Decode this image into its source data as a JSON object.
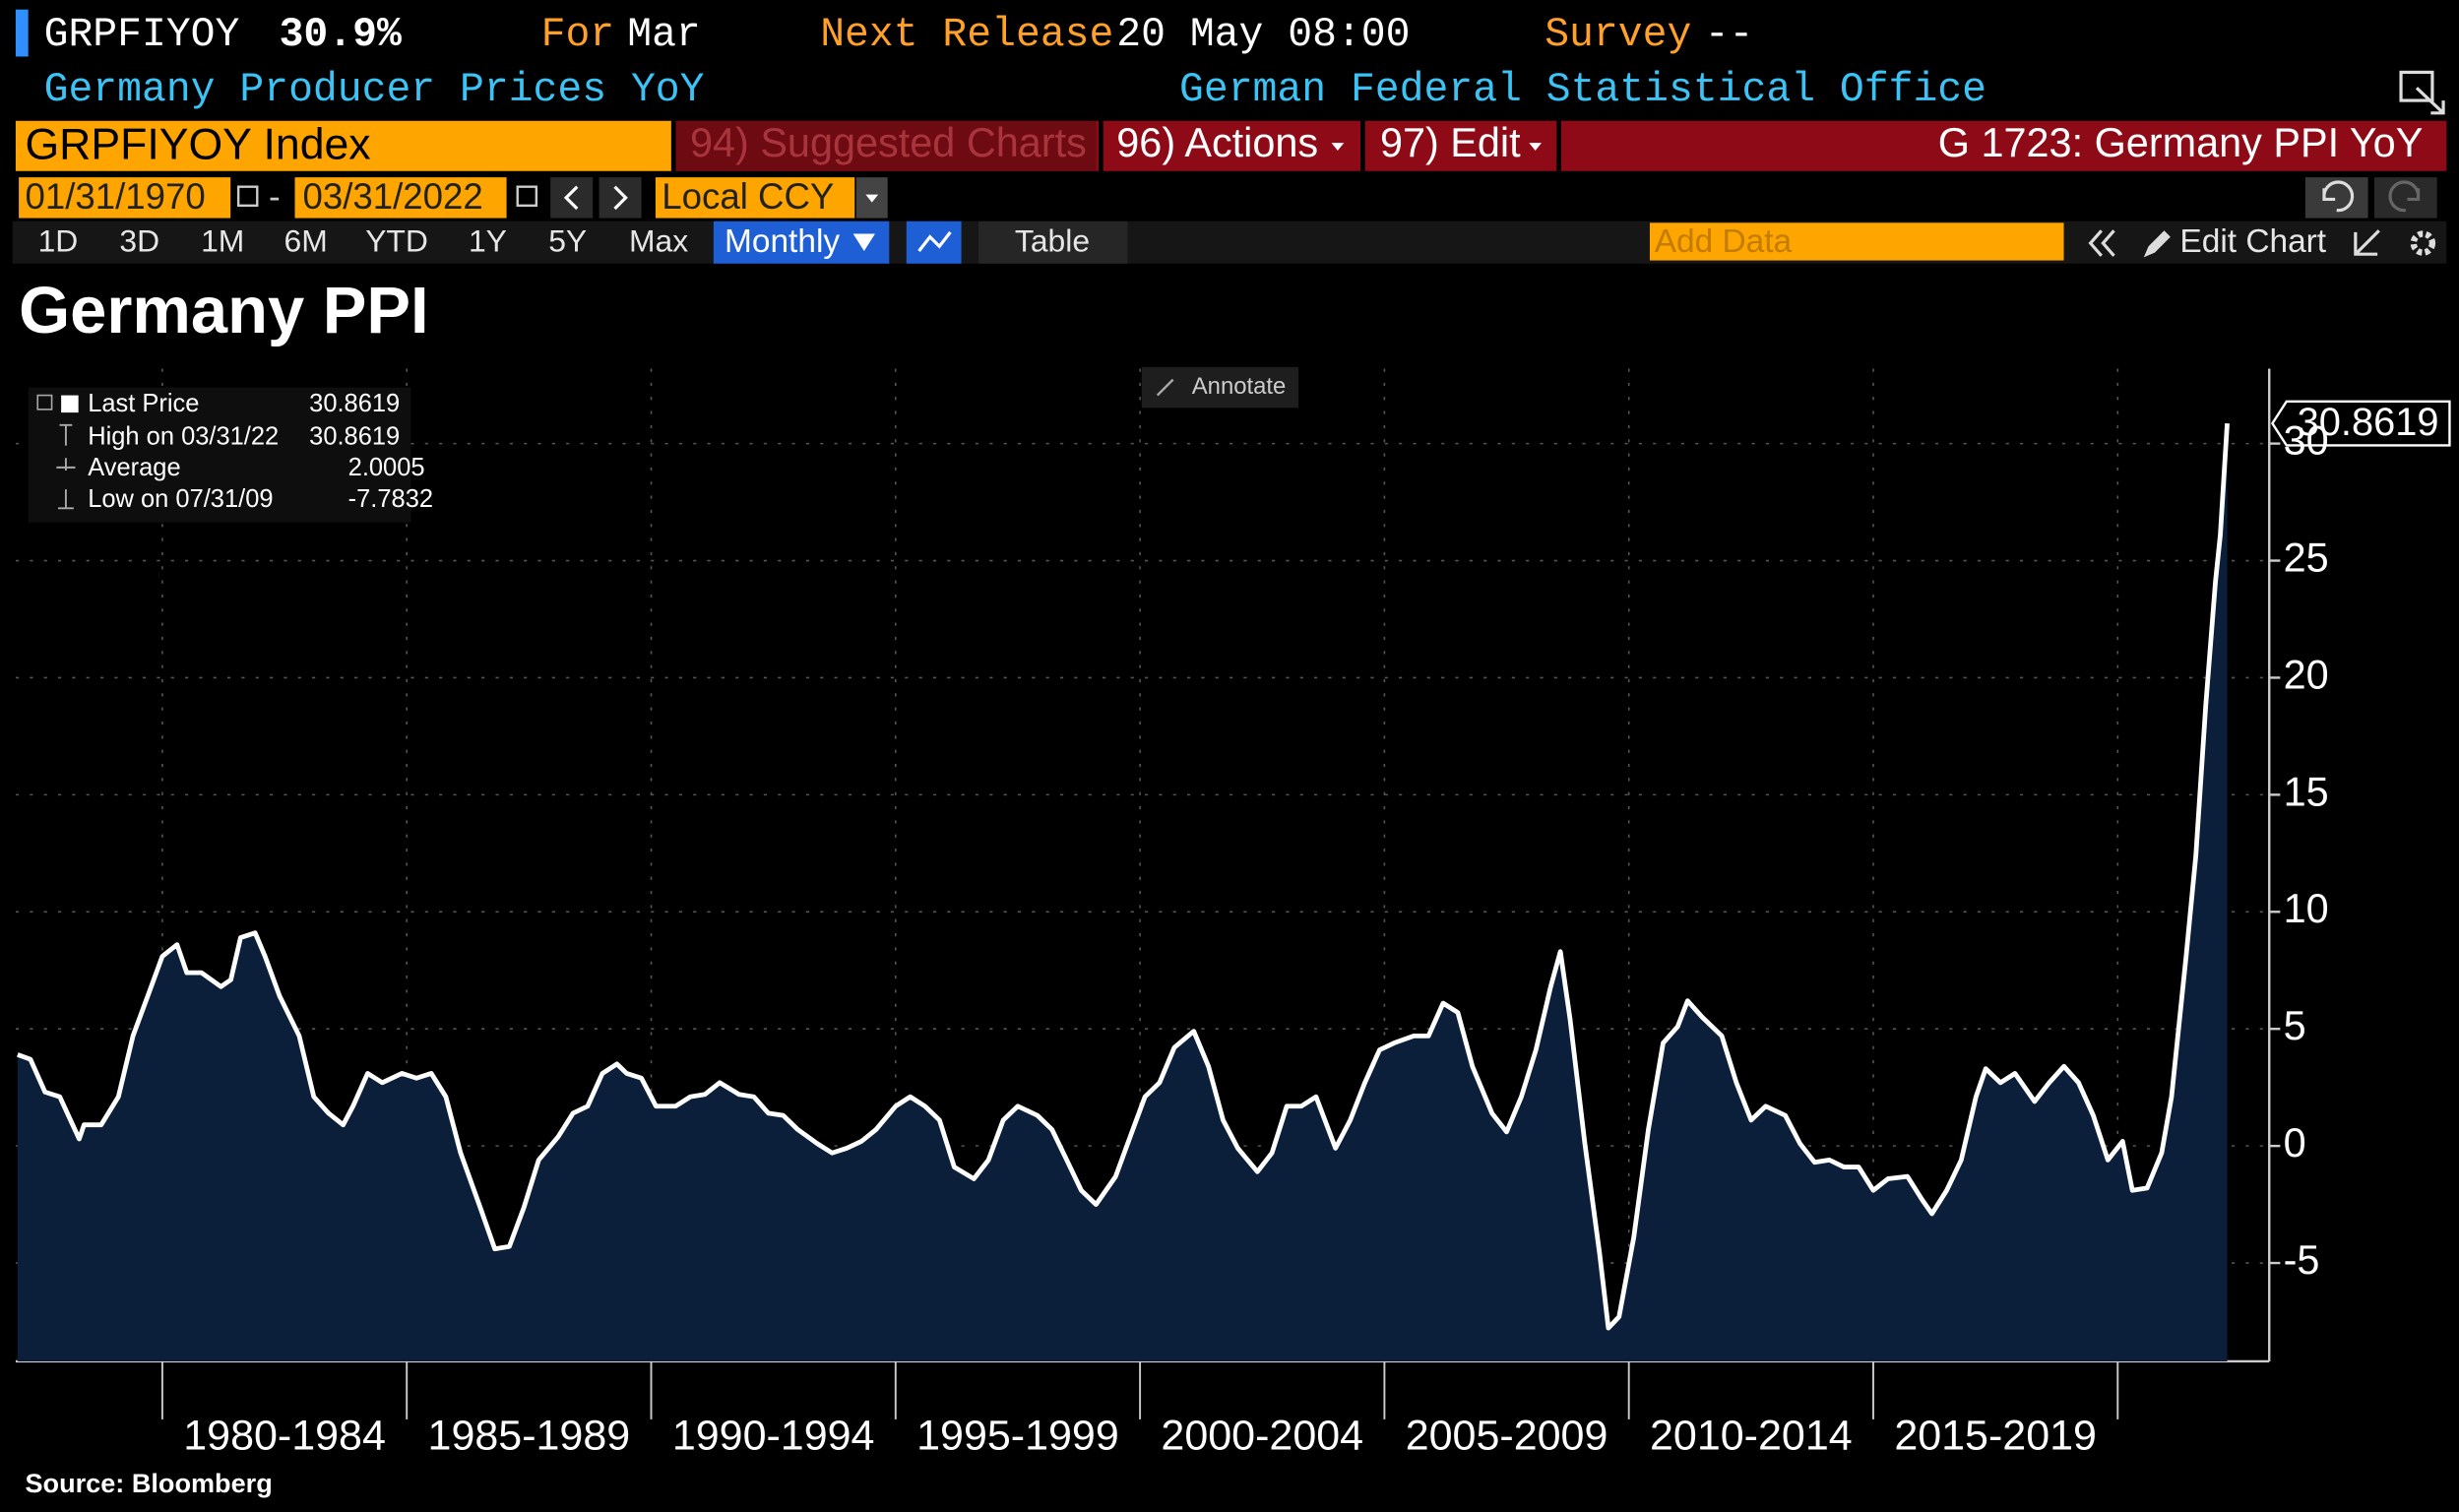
{
  "ui": {
    "ticker": "GRPFIYOY",
    "last_change": "30.9%",
    "for_label": "For",
    "for_value": "Mar",
    "next_release_label": "Next Release",
    "next_release_value": "20 May 08:00",
    "survey_label": "Survey",
    "survey_value": "--",
    "description": "Germany Producer Prices YoY",
    "source_name": "German Federal Statistical Office",
    "security": "GRPFIYOY Index",
    "suggested": "94) Suggested Charts",
    "actions": "96) Actions",
    "edit": "97) Edit",
    "chart_id": "G 1723: Germany PPI YoY",
    "start_date": "01/31/1970",
    "date_separator": "-",
    "end_date": "03/31/2022",
    "currency": "Local CCY",
    "periods": [
      "1D",
      "3D",
      "1M",
      "6M",
      "YTD",
      "1Y",
      "5Y",
      "Max"
    ],
    "frequency": "Monthly",
    "table": "Table",
    "add_data": "Add Data",
    "edit_chart": "Edit Chart",
    "annotate": "Annotate"
  },
  "chart_data": {
    "type": "line",
    "title": "Germany PPI",
    "source": "Source: Bloomberg",
    "x": [
      1977.04,
      1977.3,
      1977.6,
      1977.9,
      1978.3,
      1978.4,
      1978.75,
      1979.1,
      1979.4,
      1979.7,
      1980.0,
      1980.3,
      1980.5,
      1980.8,
      1981.2,
      1981.4,
      1981.6,
      1981.9,
      1982.1,
      1982.4,
      1982.8,
      1983.1,
      1983.4,
      1983.7,
      1983.9,
      1984.2,
      1984.5,
      1984.9,
      1985.2,
      1985.5,
      1985.8,
      1986.1,
      1986.5,
      1986.8,
      1987.1,
      1987.4,
      1987.7,
      1988.1,
      1988.4,
      1988.7,
      1989.0,
      1989.3,
      1989.5,
      1989.8,
      1990.1,
      1990.5,
      1990.8,
      1991.1,
      1991.4,
      1991.8,
      1992.1,
      1992.4,
      1992.7,
      1993.0,
      1993.4,
      1993.7,
      1994.0,
      1994.3,
      1994.6,
      1995.0,
      1995.3,
      1995.6,
      1995.9,
      1996.2,
      1996.6,
      1996.9,
      1997.2,
      1997.5,
      1997.9,
      1998.2,
      1998.5,
      1998.8,
      1999.1,
      1999.5,
      1999.8,
      2000.1,
      2000.4,
      2000.7,
      2001.1,
      2001.4,
      2001.7,
      2002.0,
      2002.4,
      2002.7,
      2003.0,
      2003.3,
      2003.6,
      2004.0,
      2004.3,
      2004.6,
      2004.9,
      2005.2,
      2005.6,
      2005.9,
      2006.2,
      2006.5,
      2006.8,
      2007.2,
      2007.5,
      2007.8,
      2008.1,
      2008.4,
      2008.6,
      2008.8,
      2009.1,
      2009.4,
      2009.58,
      2009.8,
      2010.1,
      2010.4,
      2010.7,
      2011.0,
      2011.2,
      2011.5,
      2011.9,
      2012.2,
      2012.5,
      2012.8,
      2013.2,
      2013.5,
      2013.8,
      2014.1,
      2014.4,
      2014.7,
      2015.0,
      2015.3,
      2015.7,
      2016.0,
      2016.2,
      2016.5,
      2016.8,
      2017.1,
      2017.3,
      2017.6,
      2017.9,
      2018.3,
      2018.6,
      2018.9,
      2019.2,
      2019.5,
      2019.8,
      2020.1,
      2020.3,
      2020.6,
      2020.9,
      2021.1,
      2021.4,
      2021.6,
      2021.8,
      2022.0,
      2022.1,
      2022.24
    ],
    "series": [
      {
        "name": "Last Price",
        "color": "#ffffff",
        "fill": "#0b1e3a",
        "values": [
          3.9,
          3.7,
          2.3,
          2.1,
          0.3,
          0.9,
          0.9,
          2.1,
          4.7,
          6.4,
          8.1,
          8.6,
          7.4,
          7.4,
          6.8,
          7.1,
          8.9,
          9.1,
          8.1,
          6.4,
          4.7,
          2.1,
          1.4,
          0.9,
          1.7,
          3.1,
          2.7,
          3.1,
          2.9,
          3.1,
          2.1,
          -0.3,
          -2.6,
          -4.4,
          -4.3,
          -2.6,
          -0.6,
          0.4,
          1.4,
          1.7,
          3.1,
          3.5,
          3.1,
          2.9,
          1.7,
          1.7,
          2.1,
          2.2,
          2.7,
          2.2,
          2.1,
          1.4,
          1.3,
          0.7,
          0.1,
          -0.3,
          -0.1,
          0.2,
          0.7,
          1.7,
          2.1,
          1.7,
          1.1,
          -0.9,
          -1.4,
          -0.6,
          1.1,
          1.7,
          1.3,
          0.7,
          -0.6,
          -1.9,
          -2.5,
          -1.3,
          0.4,
          2.1,
          2.7,
          4.2,
          4.9,
          3.4,
          1.1,
          -0.1,
          -1.1,
          -0.3,
          1.7,
          1.7,
          2.1,
          -0.1,
          1.1,
          2.7,
          4.1,
          4.4,
          4.7,
          4.7,
          6.1,
          5.7,
          3.4,
          1.4,
          0.6,
          2.1,
          4.1,
          6.8,
          8.3,
          5.4,
          0.1,
          -4.6,
          -7.7832,
          -7.3,
          -3.9,
          0.7,
          4.4,
          5.1,
          6.2,
          5.5,
          4.7,
          2.7,
          1.1,
          1.7,
          1.3,
          0.1,
          -0.7,
          -0.6,
          -0.9,
          -0.9,
          -1.9,
          -1.4,
          -1.3,
          -2.3,
          -2.9,
          -1.9,
          -0.6,
          2.1,
          3.3,
          2.7,
          3.1,
          1.9,
          2.7,
          3.4,
          2.7,
          1.3,
          -0.6,
          0.2,
          -1.9,
          -1.8,
          -0.3,
          2.1,
          8.1,
          12.4,
          18.8,
          24.1,
          26.1,
          30.8619
        ]
      }
    ],
    "stats": [
      {
        "label": "High on 03/31/22",
        "value": 30.8619
      },
      {
        "label": "Average",
        "value": 2.0005
      },
      {
        "label": "Low on 07/31/09",
        "value": -7.7832
      }
    ],
    "xlim": [
      1977,
      2023.1
    ],
    "ylim": [
      -9.2,
      33.2
    ],
    "yticks": [
      -5,
      0,
      5,
      10,
      15,
      20,
      25,
      30
    ],
    "xticks": [
      {
        "value": 1982.5,
        "label": "1980-1984"
      },
      {
        "value": 1987.5,
        "label": "1985-1989"
      },
      {
        "value": 1992.5,
        "label": "1990-1994"
      },
      {
        "value": 1997.5,
        "label": "1995-1999"
      },
      {
        "value": 2002.5,
        "label": "2000-2004"
      },
      {
        "value": 2007.5,
        "label": "2005-2009"
      },
      {
        "value": 2012.5,
        "label": "2010-2014"
      },
      {
        "value": 2017.5,
        "label": "2015-2019"
      }
    ],
    "xgrid": [
      1980,
      1985,
      1990,
      1995,
      2000,
      2005,
      2010,
      2015,
      2020
    ],
    "grid": true
  }
}
